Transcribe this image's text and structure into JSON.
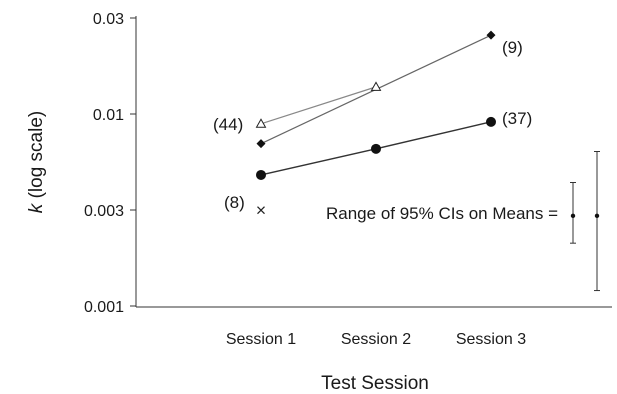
{
  "chart_data": {
    "type": "line",
    "xlabel": "Test Session",
    "ylabel_italic": "k",
    "ylabel_rest": " (log scale)",
    "y_scale": "log",
    "ylim": [
      0.001,
      0.03
    ],
    "yticks": [
      "0.001",
      "0.003",
      "0.01",
      "0.03"
    ],
    "ytick_values": [
      0.001,
      0.003,
      0.01,
      0.03
    ],
    "categories": [
      "Session 1",
      "Session 2",
      "Session 3"
    ],
    "series": [
      {
        "label": "(44)",
        "marker": "triangle-open",
        "x": [
          1,
          2
        ],
        "values": [
          0.0086,
          0.0133
        ]
      },
      {
        "label": "(9)",
        "marker": "diamond-filled",
        "x": [
          1,
          3
        ],
        "values": [
          0.0068,
          0.0245
        ]
      },
      {
        "label": "(37)",
        "marker": "circle-filled",
        "x": [
          1,
          2,
          3
        ],
        "values": [
          0.0047,
          0.0064,
          0.0088
        ]
      },
      {
        "label": "(8)",
        "marker": "cross",
        "x": [
          1
        ],
        "values": [
          0.0031
        ]
      }
    ],
    "ci_annotation": "Range of 95% CIs on Means =",
    "ci_ranges": [
      {
        "mean": 0.0029,
        "low": 0.0021,
        "high": 0.0043
      },
      {
        "mean": 0.0029,
        "low": 0.0012,
        "high": 0.0062
      }
    ]
  }
}
